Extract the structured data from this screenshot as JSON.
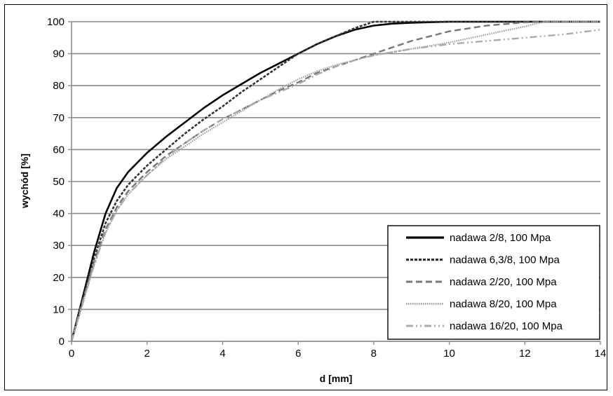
{
  "chart_data": {
    "type": "line",
    "title": "",
    "xlabel": "d [mm]",
    "ylabel": "wychód [%]",
    "xlim": [
      0,
      14
    ],
    "ylim": [
      0,
      100
    ],
    "x_ticks": [
      "0",
      "2",
      "4",
      "6",
      "8",
      "10",
      "12",
      "14"
    ],
    "y_ticks": [
      "0",
      "10",
      "20",
      "30",
      "40",
      "50",
      "60",
      "70",
      "80",
      "90",
      "100"
    ],
    "grid": "horizontal",
    "legend_position": "bottom-right",
    "series": [
      {
        "name": "nadawa 2/8, 100 Mpa",
        "color": "#000000",
        "dash": "solid",
        "points": [
          [
            0,
            0
          ],
          [
            0.3,
            14
          ],
          [
            0.6,
            28
          ],
          [
            0.9,
            40
          ],
          [
            1.2,
            48
          ],
          [
            1.5,
            53
          ],
          [
            2,
            59
          ],
          [
            2.5,
            64
          ],
          [
            3,
            68.5
          ],
          [
            3.5,
            73
          ],
          [
            4,
            77
          ],
          [
            4.5,
            80.5
          ],
          [
            5,
            84
          ],
          [
            5.5,
            87
          ],
          [
            6,
            90
          ],
          [
            6.5,
            93
          ],
          [
            7,
            95.5
          ],
          [
            7.5,
            97.5
          ],
          [
            8,
            98.8
          ],
          [
            8.5,
            99.4
          ],
          [
            9,
            99.7
          ],
          [
            10,
            100
          ],
          [
            14,
            100
          ]
        ]
      },
      {
        "name": "nadawa 6,3/8, 100 Mpa",
        "color": "#333333",
        "dash": "dotted",
        "points": [
          [
            0,
            0
          ],
          [
            0.3,
            13
          ],
          [
            0.6,
            26
          ],
          [
            0.9,
            37
          ],
          [
            1.2,
            44
          ],
          [
            1.5,
            49
          ],
          [
            2,
            55
          ],
          [
            2.5,
            60
          ],
          [
            3,
            65
          ],
          [
            3.5,
            69.5
          ],
          [
            4,
            73.5
          ],
          [
            4.5,
            78
          ],
          [
            5,
            82
          ],
          [
            5.5,
            86
          ],
          [
            6,
            90
          ],
          [
            6.5,
            93
          ],
          [
            7,
            95.5
          ],
          [
            7.5,
            98
          ],
          [
            8,
            100
          ],
          [
            14,
            100
          ]
        ]
      },
      {
        "name": "nadawa 2/20, 100 Mpa",
        "color": "#777777",
        "dash": "dashed",
        "points": [
          [
            0,
            0
          ],
          [
            0.3,
            13
          ],
          [
            0.6,
            25
          ],
          [
            0.9,
            35
          ],
          [
            1.2,
            42
          ],
          [
            1.5,
            47
          ],
          [
            2,
            53
          ],
          [
            2.5,
            58
          ],
          [
            3,
            62
          ],
          [
            3.5,
            66
          ],
          [
            4,
            69.5
          ],
          [
            4.5,
            72.5
          ],
          [
            5,
            75.5
          ],
          [
            5.5,
            78.5
          ],
          [
            6,
            81
          ],
          [
            6.5,
            84
          ],
          [
            7,
            86
          ],
          [
            7.5,
            88
          ],
          [
            8,
            90
          ],
          [
            9,
            94
          ],
          [
            10,
            97
          ],
          [
            11,
            98.8
          ],
          [
            12,
            99.8
          ],
          [
            12.5,
            100
          ],
          [
            14,
            100
          ]
        ]
      },
      {
        "name": "nadawa 8/20, 100 Mpa",
        "color": "#999999",
        "dash": "fine-dotted",
        "points": [
          [
            0,
            0
          ],
          [
            0.3,
            12
          ],
          [
            0.6,
            24
          ],
          [
            0.9,
            34
          ],
          [
            1.2,
            41
          ],
          [
            1.5,
            46
          ],
          [
            2,
            52
          ],
          [
            2.5,
            57
          ],
          [
            3,
            61
          ],
          [
            3.5,
            65
          ],
          [
            4,
            68.5
          ],
          [
            4.5,
            72
          ],
          [
            5,
            75.5
          ],
          [
            5.5,
            79
          ],
          [
            6,
            82
          ],
          [
            6.5,
            84.5
          ],
          [
            7,
            86.5
          ],
          [
            7.5,
            88
          ],
          [
            8,
            89.5
          ],
          [
            9,
            91.5
          ],
          [
            10,
            93.5
          ],
          [
            11,
            96
          ],
          [
            12,
            98.5
          ],
          [
            12.5,
            100
          ],
          [
            14,
            100
          ]
        ]
      },
      {
        "name": "nadawa 16/20, 100 Mpa",
        "color": "#aaaaaa",
        "dash": "dash-dot",
        "points": [
          [
            0,
            0
          ],
          [
            0.3,
            12
          ],
          [
            0.6,
            24
          ],
          [
            0.9,
            34
          ],
          [
            1.2,
            41
          ],
          [
            1.5,
            46
          ],
          [
            2,
            52
          ],
          [
            2.5,
            57.5
          ],
          [
            3,
            62
          ],
          [
            3.5,
            66
          ],
          [
            4,
            69.5
          ],
          [
            4.5,
            72.5
          ],
          [
            5,
            75.5
          ],
          [
            5.5,
            78
          ],
          [
            6,
            80.5
          ],
          [
            6.5,
            83.5
          ],
          [
            7,
            86
          ],
          [
            7.5,
            88
          ],
          [
            8,
            89.5
          ],
          [
            9,
            91.5
          ],
          [
            10,
            93
          ],
          [
            11,
            94
          ],
          [
            12,
            95
          ],
          [
            13,
            96
          ],
          [
            14,
            97.5
          ]
        ]
      }
    ]
  }
}
